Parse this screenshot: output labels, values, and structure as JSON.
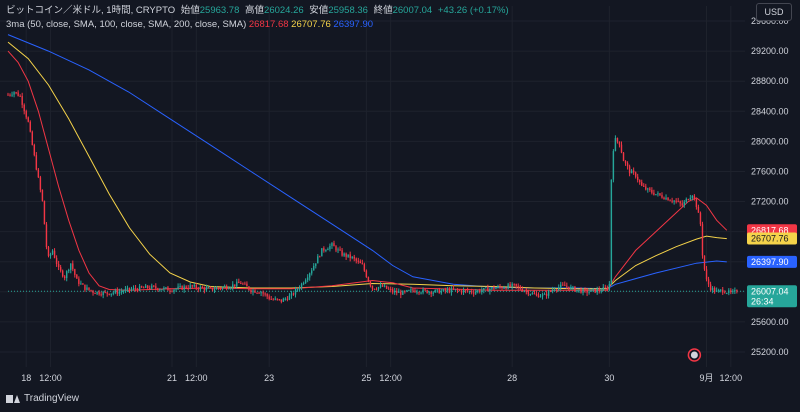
{
  "legend": {
    "symbol": "ビットコイン／米ドル, 1時間, CRYPTO",
    "open_label": "始値",
    "open": "25963.78",
    "high_label": "高値",
    "high": "26024.26",
    "low_label": "安値",
    "low": "25958.36",
    "close_label": "終値",
    "close": "26007.04",
    "change": "+43.26 (+0.17%)",
    "indicator": "3ma (50, close, SMA, 100, close, SMA, 200, close, SMA)",
    "ma50": "26817.68",
    "ma100": "26707.76",
    "ma200": "26397.90"
  },
  "currency_badge": "USD",
  "brand": "TradingView",
  "price_tags": {
    "ma50": "26817.68",
    "ma100": "26707.76",
    "ma200": "26397.90",
    "last": "26007.04",
    "countdown": "26:34"
  },
  "colors": {
    "background": "#131722",
    "up": "#26a69a",
    "down": "#f23645",
    "ma50": "#f23645",
    "ma100": "#f5d34a",
    "ma200": "#2962ff",
    "grid": "#1e222d",
    "last_price_line": "#26a69a"
  },
  "chart_data": {
    "type": "line",
    "yaxis_ticks": [
      25200,
      25600,
      26000,
      26400,
      26800,
      27200,
      27600,
      28000,
      28400,
      28800,
      29200,
      29600
    ],
    "ylim": [
      25000,
      29800
    ],
    "xaxis_ticks": [
      {
        "label": "18",
        "t": 9
      },
      {
        "label": "12:00",
        "t": 21
      },
      {
        "label": "21",
        "t": 81
      },
      {
        "label": "12:00",
        "t": 93
      },
      {
        "label": "23",
        "t": 129
      },
      {
        "label": "25",
        "t": 177
      },
      {
        "label": "12:00",
        "t": 189
      },
      {
        "label": "28",
        "t": 249
      },
      {
        "label": "30",
        "t": 297
      },
      {
        "label": "9月",
        "t": 345
      },
      {
        "label": "12:00",
        "t": 357
      }
    ],
    "xlim": [
      0,
      364
    ],
    "price_keypoints": [
      [
        0,
        28620
      ],
      [
        3,
        28660
      ],
      [
        6,
        28600
      ],
      [
        10,
        28250
      ],
      [
        14,
        27650
      ],
      [
        17,
        27200
      ],
      [
        19,
        26600
      ],
      [
        20,
        26450
      ],
      [
        22,
        26550
      ],
      [
        25,
        26300
      ],
      [
        28,
        26200
      ],
      [
        31,
        26380
      ],
      [
        34,
        26150
      ],
      [
        38,
        26050
      ],
      [
        42,
        26000
      ],
      [
        48,
        25980
      ],
      [
        55,
        26000
      ],
      [
        60,
        26030
      ],
      [
        70,
        26060
      ],
      [
        80,
        26030
      ],
      [
        90,
        26070
      ],
      [
        100,
        26030
      ],
      [
        110,
        26080
      ],
      [
        115,
        26120
      ],
      [
        120,
        26020
      ],
      [
        125,
        26000
      ],
      [
        130,
        25900
      ],
      [
        135,
        25880
      ],
      [
        140,
        25950
      ],
      [
        145,
        26100
      ],
      [
        150,
        26300
      ],
      [
        155,
        26550
      ],
      [
        160,
        26620
      ],
      [
        165,
        26500
      ],
      [
        170,
        26450
      ],
      [
        175,
        26350
      ],
      [
        178,
        26150
      ],
      [
        180,
        26050
      ],
      [
        185,
        26070
      ],
      [
        190,
        26000
      ],
      [
        195,
        25980
      ],
      [
        200,
        26020
      ],
      [
        210,
        26000
      ],
      [
        220,
        26020
      ],
      [
        230,
        26000
      ],
      [
        240,
        26050
      ],
      [
        250,
        26080
      ],
      [
        255,
        26020
      ],
      [
        260,
        25960
      ],
      [
        265,
        25950
      ],
      [
        270,
        26050
      ],
      [
        275,
        26080
      ],
      [
        280,
        26030
      ],
      [
        285,
        26000
      ],
      [
        292,
        26020
      ],
      [
        296,
        26050
      ],
      [
        297,
        26100
      ],
      [
        298,
        27500
      ],
      [
        299,
        27900
      ],
      [
        300,
        28020
      ],
      [
        302,
        27980
      ],
      [
        304,
        27750
      ],
      [
        307,
        27600
      ],
      [
        310,
        27550
      ],
      [
        313,
        27400
      ],
      [
        316,
        27350
      ],
      [
        320,
        27300
      ],
      [
        325,
        27250
      ],
      [
        330,
        27200
      ],
      [
        333,
        27150
      ],
      [
        336,
        27250
      ],
      [
        338,
        27300
      ],
      [
        340,
        27150
      ],
      [
        342,
        26900
      ],
      [
        343,
        26500
      ],
      [
        344,
        26300
      ],
      [
        345,
        26150
      ],
      [
        347,
        26050
      ],
      [
        350,
        26000
      ],
      [
        353,
        26020
      ],
      [
        357,
        25980
      ],
      [
        360,
        26007
      ]
    ],
    "series": [
      {
        "values": [
          [
            0,
            29200
          ],
          [
            5,
            29050
          ],
          [
            10,
            28800
          ],
          [
            15,
            28400
          ],
          [
            20,
            27900
          ],
          [
            25,
            27400
          ],
          [
            30,
            26950
          ],
          [
            35,
            26550
          ],
          [
            40,
            26250
          ],
          [
            45,
            26080
          ],
          [
            50,
            26030
          ],
          [
            60,
            26020
          ],
          [
            80,
            26040
          ],
          [
            100,
            26050
          ],
          [
            120,
            26040
          ],
          [
            140,
            26040
          ],
          [
            160,
            26080
          ],
          [
            180,
            26150
          ],
          [
            190,
            26120
          ],
          [
            200,
            26050
          ],
          [
            240,
            26020
          ],
          [
            280,
            26020
          ],
          [
            296,
            26020
          ],
          [
            300,
            26200
          ],
          [
            310,
            26550
          ],
          [
            320,
            26800
          ],
          [
            330,
            27050
          ],
          [
            336,
            27200
          ],
          [
            340,
            27250
          ],
          [
            345,
            27150
          ],
          [
            350,
            26950
          ],
          [
            355,
            26817.68
          ]
        ]
      },
      {
        "values": [
          [
            0,
            29320
          ],
          [
            10,
            29100
          ],
          [
            20,
            28750
          ],
          [
            30,
            28300
          ],
          [
            40,
            27800
          ],
          [
            50,
            27300
          ],
          [
            60,
            26850
          ],
          [
            70,
            26500
          ],
          [
            80,
            26250
          ],
          [
            90,
            26130
          ],
          [
            100,
            26070
          ],
          [
            120,
            26050
          ],
          [
            140,
            26050
          ],
          [
            160,
            26070
          ],
          [
            180,
            26110
          ],
          [
            200,
            26100
          ],
          [
            220,
            26080
          ],
          [
            240,
            26070
          ],
          [
            260,
            26050
          ],
          [
            280,
            26040
          ],
          [
            296,
            26040
          ],
          [
            300,
            26150
          ],
          [
            310,
            26350
          ],
          [
            320,
            26480
          ],
          [
            330,
            26600
          ],
          [
            340,
            26700
          ],
          [
            345,
            26740
          ],
          [
            350,
            26720
          ],
          [
            355,
            26707.76
          ]
        ]
      },
      {
        "values": [
          [
            0,
            29420
          ],
          [
            20,
            29200
          ],
          [
            40,
            28950
          ],
          [
            60,
            28650
          ],
          [
            80,
            28300
          ],
          [
            100,
            27950
          ],
          [
            120,
            27600
          ],
          [
            140,
            27250
          ],
          [
            160,
            26900
          ],
          [
            180,
            26550
          ],
          [
            190,
            26350
          ],
          [
            200,
            26200
          ],
          [
            220,
            26100
          ],
          [
            240,
            26060
          ],
          [
            260,
            26050
          ],
          [
            280,
            26050
          ],
          [
            296,
            26040
          ],
          [
            300,
            26100
          ],
          [
            320,
            26250
          ],
          [
            340,
            26380
          ],
          [
            350,
            26410
          ],
          [
            355,
            26397.9
          ]
        ]
      }
    ]
  }
}
